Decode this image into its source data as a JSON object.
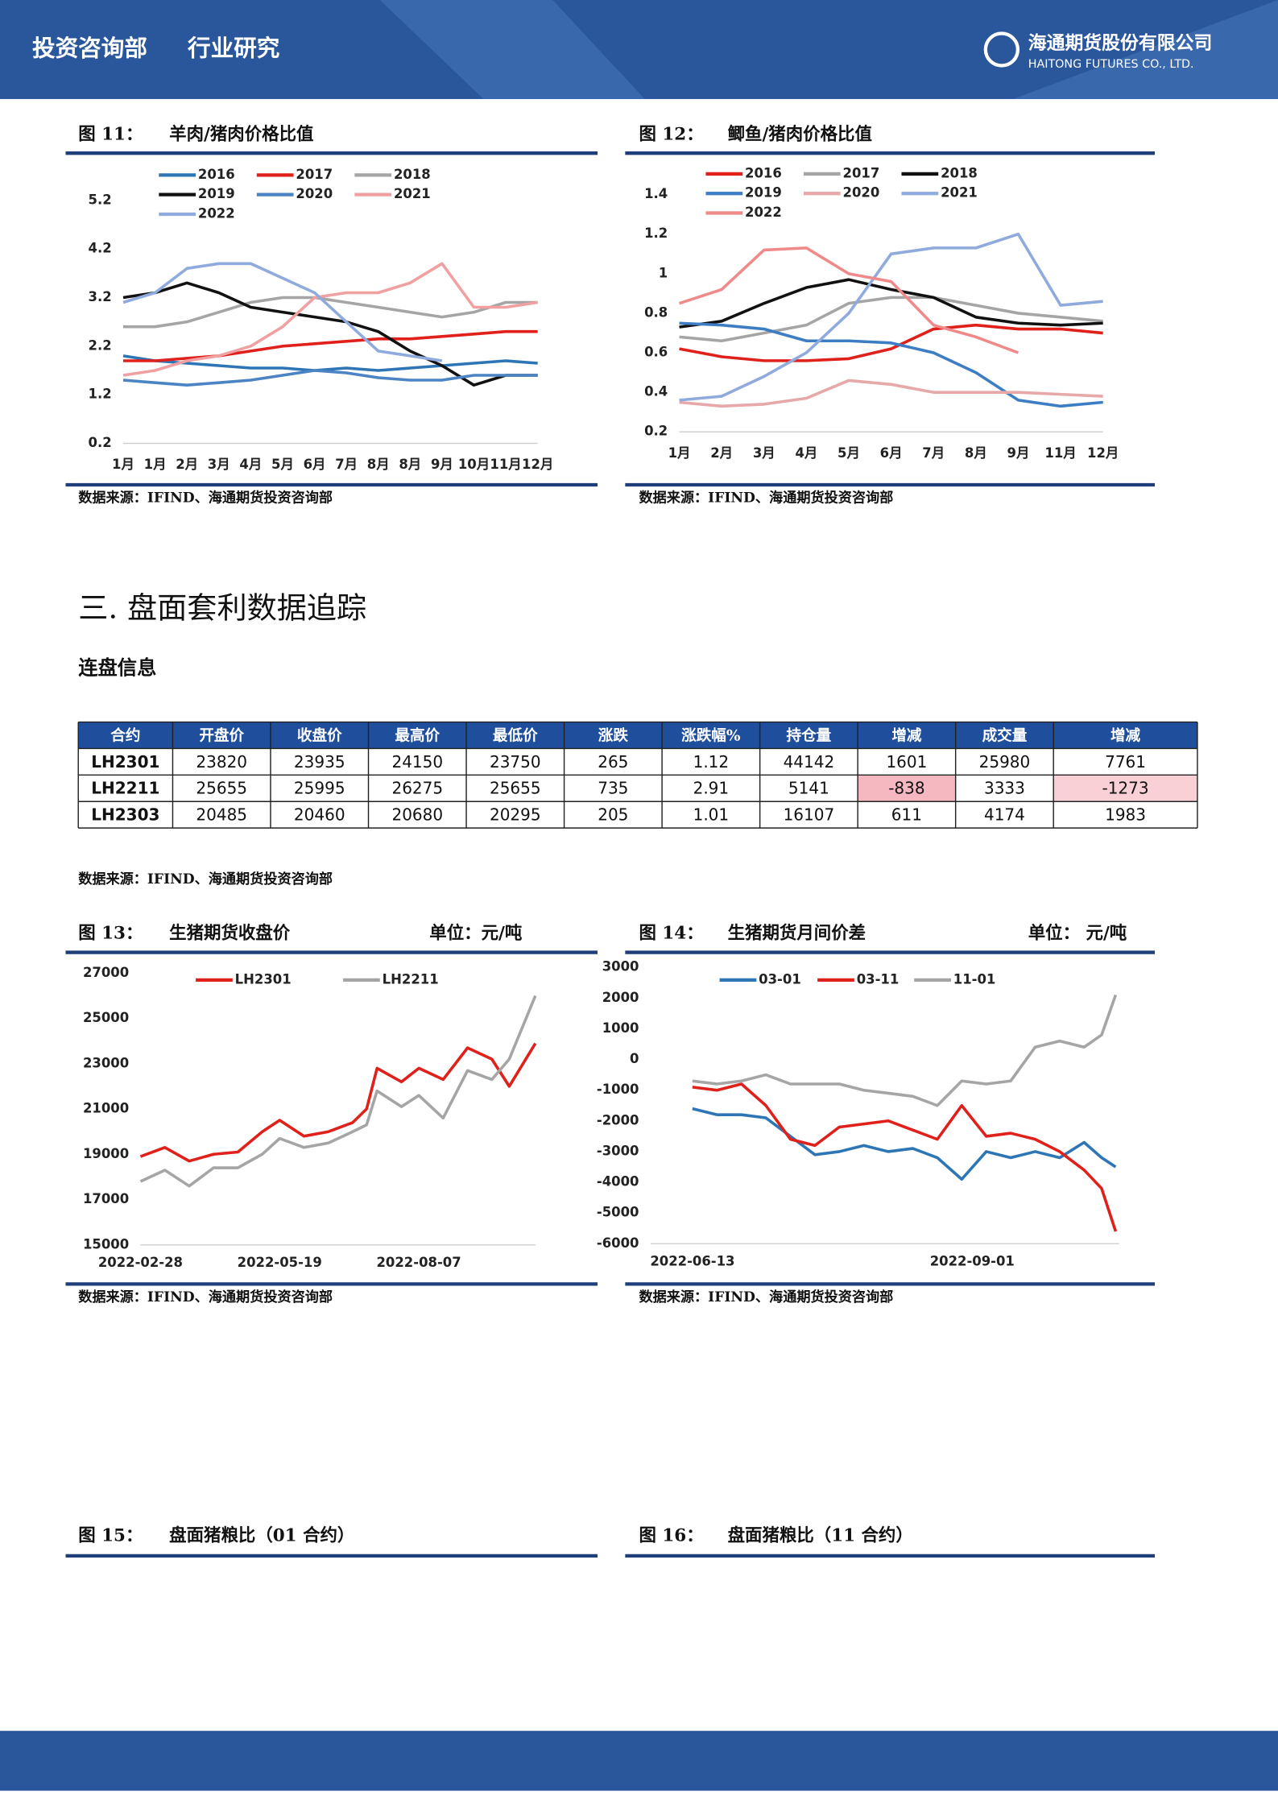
{
  "header": {
    "department": "投资咨询部",
    "category": "行业研究",
    "company": "海通期货股份有限公司",
    "company_en": "HAITONG FUTURES CO., LTD."
  },
  "section": {
    "title": "三.  盘面套利数据追踪",
    "subtitle": "连盘信息"
  },
  "table": {
    "header": [
      "合约",
      "开盘价",
      "收盘价",
      "最高价",
      "最低价",
      "涨跌",
      "涨跌幅%",
      "持仓量",
      "增减",
      "成交量",
      "增减"
    ],
    "rows": [
      [
        "LH2301",
        23820,
        23935,
        24150,
        23750,
        265,
        1.12,
        44142,
        1601,
        25980,
        7761
      ],
      [
        "LH2211",
        25655,
        25995,
        26275,
        25655,
        735,
        2.91,
        5141,
        -838,
        3333,
        -1273
      ],
      [
        "LH2303",
        20485,
        20460,
        20680,
        20295,
        205,
        1.01,
        16107,
        611,
        4174,
        1983
      ]
    ],
    "source": "数据来源：IFIND、海通期货投资咨询部"
  },
  "chart_data": [
    {
      "type": "line",
      "figure_label": "图 11：",
      "title": "羊肉/猪肉价格比值",
      "source": "数据来源：IFIND、海通期货投资咨询部",
      "categories": [
        "1月",
        "1月",
        "2月",
        "3月",
        "4月",
        "5月",
        "6月",
        "7月",
        "8月",
        "8月",
        "9月",
        "10月",
        "11月",
        "12月"
      ],
      "ylim": [
        0.2,
        5.2
      ],
      "yticks": [
        0.2,
        1.2,
        2.2,
        3.2,
        4.2,
        5.2
      ],
      "grid": false,
      "series": [
        {
          "name": "2016",
          "color": "#2e75b6",
          "values": [
            2.0,
            1.9,
            1.85,
            1.8,
            1.75,
            1.75,
            1.7,
            1.75,
            1.7,
            1.75,
            1.8,
            1.85,
            1.9,
            1.85
          ]
        },
        {
          "name": "2017",
          "color": "#e0201b",
          "values": [
            1.9,
            1.9,
            1.95,
            2.0,
            2.1,
            2.2,
            2.25,
            2.3,
            2.35,
            2.35,
            2.4,
            2.45,
            2.5,
            2.5
          ]
        },
        {
          "name": "2018",
          "color": "#a5a5a5",
          "values": [
            2.6,
            2.6,
            2.7,
            2.9,
            3.1,
            3.2,
            3.2,
            3.1,
            3.0,
            2.9,
            2.8,
            2.9,
            3.1,
            3.1
          ]
        },
        {
          "name": "2019",
          "color": "#111111",
          "values": [
            3.2,
            3.3,
            3.5,
            3.3,
            3.0,
            2.9,
            2.8,
            2.7,
            2.5,
            2.1,
            1.8,
            1.4,
            1.6,
            1.6
          ]
        },
        {
          "name": "2020",
          "color": "#4a84c4",
          "values": [
            1.5,
            1.45,
            1.4,
            1.45,
            1.5,
            1.6,
            1.7,
            1.65,
            1.55,
            1.5,
            1.5,
            1.6,
            1.6,
            1.6
          ]
        },
        {
          "name": "2021",
          "color": "#f0a0a0",
          "values": [
            1.6,
            1.7,
            1.9,
            2.0,
            2.2,
            2.6,
            3.2,
            3.3,
            3.3,
            3.5,
            3.9,
            3.0,
            3.0,
            3.1
          ]
        },
        {
          "name": "2022",
          "color": "#8faadc",
          "values": [
            3.1,
            3.3,
            3.8,
            3.9,
            3.9,
            3.6,
            3.3,
            2.7,
            2.1,
            2.0,
            1.9,
            null,
            null,
            null
          ]
        }
      ]
    },
    {
      "type": "line",
      "figure_label": "图 12：",
      "title": "鲫鱼/猪肉价格比值",
      "source": "数据来源：IFIND、海通期货投资咨询部",
      "categories": [
        "1月",
        "2月",
        "3月",
        "4月",
        "5月",
        "6月",
        "7月",
        "8月",
        "9月",
        "11月",
        "12月"
      ],
      "ylim": [
        0.2,
        1.4
      ],
      "yticks": [
        0.2,
        0.4,
        0.6,
        0.8,
        1,
        1.2,
        1.4
      ],
      "grid": false,
      "series": [
        {
          "name": "2016",
          "color": "#e0201b",
          "values": [
            0.62,
            0.58,
            0.56,
            0.56,
            0.57,
            0.62,
            0.72,
            0.74,
            0.72,
            0.72,
            0.7
          ]
        },
        {
          "name": "2017",
          "color": "#a5a5a5",
          "values": [
            0.68,
            0.66,
            0.7,
            0.74,
            0.85,
            0.88,
            0.88,
            0.84,
            0.8,
            0.78,
            0.76
          ]
        },
        {
          "name": "2018",
          "color": "#111111",
          "values": [
            0.73,
            0.76,
            0.85,
            0.93,
            0.97,
            0.92,
            0.88,
            0.78,
            0.75,
            0.74,
            0.75
          ]
        },
        {
          "name": "2019",
          "color": "#3c7dc4",
          "values": [
            0.75,
            0.74,
            0.72,
            0.66,
            0.66,
            0.65,
            0.6,
            0.5,
            0.36,
            0.33,
            0.35
          ]
        },
        {
          "name": "2020",
          "color": "#e6a8a8",
          "values": [
            0.35,
            0.33,
            0.34,
            0.37,
            0.46,
            0.44,
            0.4,
            0.4,
            0.4,
            0.39,
            0.38
          ]
        },
        {
          "name": "2021",
          "color": "#8faadc",
          "values": [
            0.36,
            0.38,
            0.48,
            0.6,
            0.8,
            1.1,
            1.13,
            1.13,
            1.2,
            0.84,
            0.86
          ]
        },
        {
          "name": "2022",
          "color": "#f08a8a",
          "values": [
            0.85,
            0.92,
            1.12,
            1.13,
            1.0,
            0.96,
            0.74,
            0.68,
            0.6,
            null,
            null
          ]
        }
      ]
    },
    {
      "type": "line",
      "figure_label": "图 13：",
      "title": "生猪期货收盘价",
      "unit": "单位：元/吨",
      "source": "数据来源：IFIND、海通期货投资咨询部",
      "x": [
        "2022-02-28",
        "2022-03-14",
        "2022-03-28",
        "2022-04-11",
        "2022-04-25",
        "2022-05-09",
        "2022-05-19",
        "2022-06-02",
        "2022-06-16",
        "2022-06-30",
        "2022-07-08",
        "2022-07-14",
        "2022-07-28",
        "2022-08-07",
        "2022-08-21",
        "2022-09-04",
        "2022-09-18",
        "2022-09-28",
        "2022-10-13"
      ],
      "xlim": [
        "2022-02-28",
        "2022-10-13"
      ],
      "xticks": [
        "2022-02-28",
        "2022-05-19",
        "2022-08-07"
      ],
      "ylim": [
        15000,
        27000
      ],
      "yticks": [
        15000,
        17000,
        19000,
        21000,
        23000,
        25000,
        27000
      ],
      "grid": false,
      "series": [
        {
          "name": "LH2301",
          "color": "#e0201b",
          "values": [
            18900,
            19300,
            18700,
            19000,
            19100,
            20000,
            20500,
            19800,
            20000,
            20400,
            21000,
            22800,
            22200,
            22800,
            22300,
            23700,
            23200,
            22000,
            23900
          ]
        },
        {
          "name": "LH2211",
          "color": "#a5a5a5",
          "values": [
            17800,
            18300,
            17600,
            18400,
            18400,
            19000,
            19700,
            19300,
            19500,
            20000,
            20300,
            21800,
            21100,
            21600,
            20600,
            22700,
            22300,
            23200,
            26000
          ]
        }
      ]
    },
    {
      "type": "line",
      "figure_label": "图 14：",
      "title": "生猪期货月间价差",
      "unit": "单位： 元/吨",
      "source": "数据来源：IFIND、海通期货投资咨询部",
      "x": [
        "2022-06-13",
        "2022-06-20",
        "2022-06-27",
        "2022-07-04",
        "2022-07-11",
        "2022-07-18",
        "2022-07-25",
        "2022-08-01",
        "2022-08-08",
        "2022-08-15",
        "2022-08-22",
        "2022-08-29",
        "2022-09-05",
        "2022-09-12",
        "2022-09-19",
        "2022-09-26",
        "2022-10-03",
        "2022-10-08",
        "2022-10-12"
      ],
      "xlim": [
        "2022-06-01",
        "2022-10-13"
      ],
      "xticks": [
        "2022-06-13",
        "2022-09-01"
      ],
      "ylim": [
        -6000,
        3000
      ],
      "yticks": [
        -6000,
        -5000,
        -4000,
        -3000,
        -2000,
        -1000,
        0,
        1000,
        2000,
        3000
      ],
      "grid": false,
      "series": [
        {
          "name": "03-01",
          "color": "#2e75b6",
          "values": [
            -1600,
            -1800,
            -1800,
            -1900,
            -2500,
            -3100,
            -3000,
            -2800,
            -3000,
            -2900,
            -3200,
            -3900,
            -3000,
            -3200,
            -3000,
            -3200,
            -2700,
            -3200,
            -3500
          ]
        },
        {
          "name": "03-11",
          "color": "#e0201b",
          "values": [
            -900,
            -1000,
            -800,
            -1500,
            -2600,
            -2800,
            -2200,
            -2100,
            -2000,
            -2300,
            -2600,
            -1500,
            -2500,
            -2400,
            -2600,
            -3000,
            -3600,
            -4200,
            -5600
          ]
        },
        {
          "name": "11-01",
          "color": "#a5a5a5",
          "values": [
            -700,
            -800,
            -700,
            -500,
            -800,
            -800,
            -800,
            -1000,
            -1100,
            -1200,
            -1500,
            -700,
            -800,
            -700,
            400,
            600,
            400,
            800,
            2100
          ]
        }
      ]
    }
  ],
  "figures_pending": [
    {
      "figure_label": "图 15：",
      "title": "盘面猪粮比（01 合约）"
    },
    {
      "figure_label": "图 16：",
      "title": "盘面猪粮比（11 合约）"
    }
  ]
}
